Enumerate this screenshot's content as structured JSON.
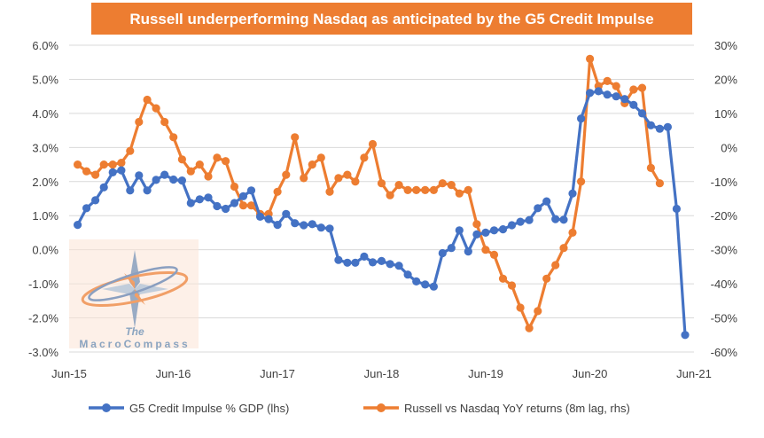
{
  "chart_data": {
    "type": "line",
    "title": "Russell underperforming Nasdaq as anticipated by the G5 Credit Impulse",
    "x_tick_labels": [
      "Jun-15",
      "Jun-16",
      "Jun-17",
      "Jun-18",
      "Jun-19",
      "Jun-20",
      "Jun-21"
    ],
    "y_left_ticks": [
      "6.0%",
      "5.0%",
      "4.0%",
      "3.0%",
      "2.0%",
      "1.0%",
      "0.0%",
      "-1.0%",
      "-2.0%",
      "-3.0%"
    ],
    "y_right_ticks": [
      "30%",
      "20%",
      "10%",
      "0%",
      "-10%",
      "-20%",
      "-30%",
      "-40%",
      "-50%",
      "-60%"
    ],
    "ylim_left": [
      -3.0,
      6.0
    ],
    "ylim_right": [
      -60,
      30
    ],
    "grid": true,
    "legend_position": "bottom",
    "series": [
      {
        "name": "G5 Credit Impulse % GDP (lhs)",
        "axis": "left",
        "color": "#4472C4",
        "x": [
          "2015-07",
          "2015-08",
          "2015-09",
          "2015-10",
          "2015-11",
          "2015-12",
          "2016-01",
          "2016-02",
          "2016-03",
          "2016-04",
          "2016-05",
          "2016-06",
          "2016-07",
          "2016-08",
          "2016-09",
          "2016-10",
          "2016-11",
          "2016-12",
          "2017-01",
          "2017-02",
          "2017-03",
          "2017-04",
          "2017-05",
          "2017-06",
          "2017-07",
          "2017-08",
          "2017-09",
          "2017-10",
          "2017-11",
          "2017-12",
          "2018-01",
          "2018-02",
          "2018-03",
          "2018-04",
          "2018-05",
          "2018-06",
          "2018-07",
          "2018-08",
          "2018-09",
          "2018-10",
          "2018-11",
          "2018-12",
          "2019-01",
          "2019-02",
          "2019-03",
          "2019-04",
          "2019-05",
          "2019-06",
          "2019-07",
          "2019-08",
          "2019-09",
          "2019-10",
          "2019-11",
          "2019-12",
          "2020-01",
          "2020-02",
          "2020-03",
          "2020-04",
          "2020-05",
          "2020-06",
          "2020-07",
          "2020-08",
          "2020-09",
          "2020-10",
          "2020-11",
          "2020-12",
          "2021-01",
          "2021-02",
          "2021-03",
          "2021-04",
          "2021-05"
        ],
        "values": [
          0.73,
          1.22,
          1.45,
          1.83,
          2.27,
          2.33,
          1.74,
          2.18,
          1.74,
          2.05,
          2.2,
          2.06,
          2.03,
          1.37,
          1.48,
          1.53,
          1.28,
          1.2,
          1.37,
          1.57,
          1.74,
          0.97,
          0.9,
          0.73,
          1.05,
          0.78,
          0.72,
          0.75,
          0.65,
          0.62,
          -0.3,
          -0.38,
          -0.38,
          -0.2,
          -0.37,
          -0.33,
          -0.42,
          -0.47,
          -0.73,
          -0.93,
          -1.02,
          -1.08,
          -0.1,
          0.05,
          0.57,
          -0.05,
          0.45,
          0.5,
          0.57,
          0.6,
          0.72,
          0.82,
          0.87,
          1.22,
          1.42,
          0.9,
          0.88,
          1.65,
          3.85,
          4.6,
          4.65,
          4.55,
          4.5,
          4.42,
          4.25,
          4.0,
          3.65,
          3.55,
          3.6,
          1.2,
          -2.5
        ]
      },
      {
        "name": "Russell vs Nasdaq YoY returns (8m lag, rhs)",
        "axis": "right",
        "color": "#ED7D31",
        "x": [
          "2015-07",
          "2015-08",
          "2015-09",
          "2015-10",
          "2015-11",
          "2015-12",
          "2016-01",
          "2016-02",
          "2016-03",
          "2016-04",
          "2016-05",
          "2016-06",
          "2016-07",
          "2016-08",
          "2016-09",
          "2016-10",
          "2016-11",
          "2016-12",
          "2017-01",
          "2017-02",
          "2017-03",
          "2017-04",
          "2017-05",
          "2017-06",
          "2017-07",
          "2017-08",
          "2017-09",
          "2017-10",
          "2017-11",
          "2017-12",
          "2018-01",
          "2018-02",
          "2018-03",
          "2018-04",
          "2018-05",
          "2018-06",
          "2018-07",
          "2018-08",
          "2018-09",
          "2018-10",
          "2018-11",
          "2018-12",
          "2019-01",
          "2019-02",
          "2019-03",
          "2019-04",
          "2019-05",
          "2019-06",
          "2019-07",
          "2019-08",
          "2019-09",
          "2019-10",
          "2019-11",
          "2019-12",
          "2020-01",
          "2020-02",
          "2020-03",
          "2020-04",
          "2020-05",
          "2020-06",
          "2020-07",
          "2020-08",
          "2020-09",
          "2020-10",
          "2020-11",
          "2020-12",
          "2021-01",
          "2021-02"
        ],
        "values": [
          -5,
          -7,
          -8,
          -5,
          -5,
          -4.5,
          -1,
          7.5,
          14,
          11.5,
          7.5,
          3,
          -3.5,
          -7,
          -5,
          -8.5,
          -3,
          -4,
          -11.5,
          -17,
          -17,
          -19.5,
          -19.5,
          -13,
          -8,
          3,
          -9,
          -5,
          -3,
          -13,
          -9,
          -8,
          -10,
          -3,
          1,
          -10.5,
          -14,
          -11,
          -12.5,
          -12.5,
          -12.5,
          -12.5,
          -10.5,
          -11,
          -13.5,
          -12.5,
          -22.5,
          -30,
          -31.5,
          -38.5,
          -40.5,
          -47,
          -53,
          -48,
          -38.5,
          -34.5,
          -29.5,
          -25,
          -10,
          26,
          18,
          19.5,
          18,
          13,
          17,
          17.5,
          -6,
          -10.5
        ]
      }
    ]
  },
  "watermark": {
    "text_line1": "The",
    "text_line2": "MacroCompass"
  }
}
